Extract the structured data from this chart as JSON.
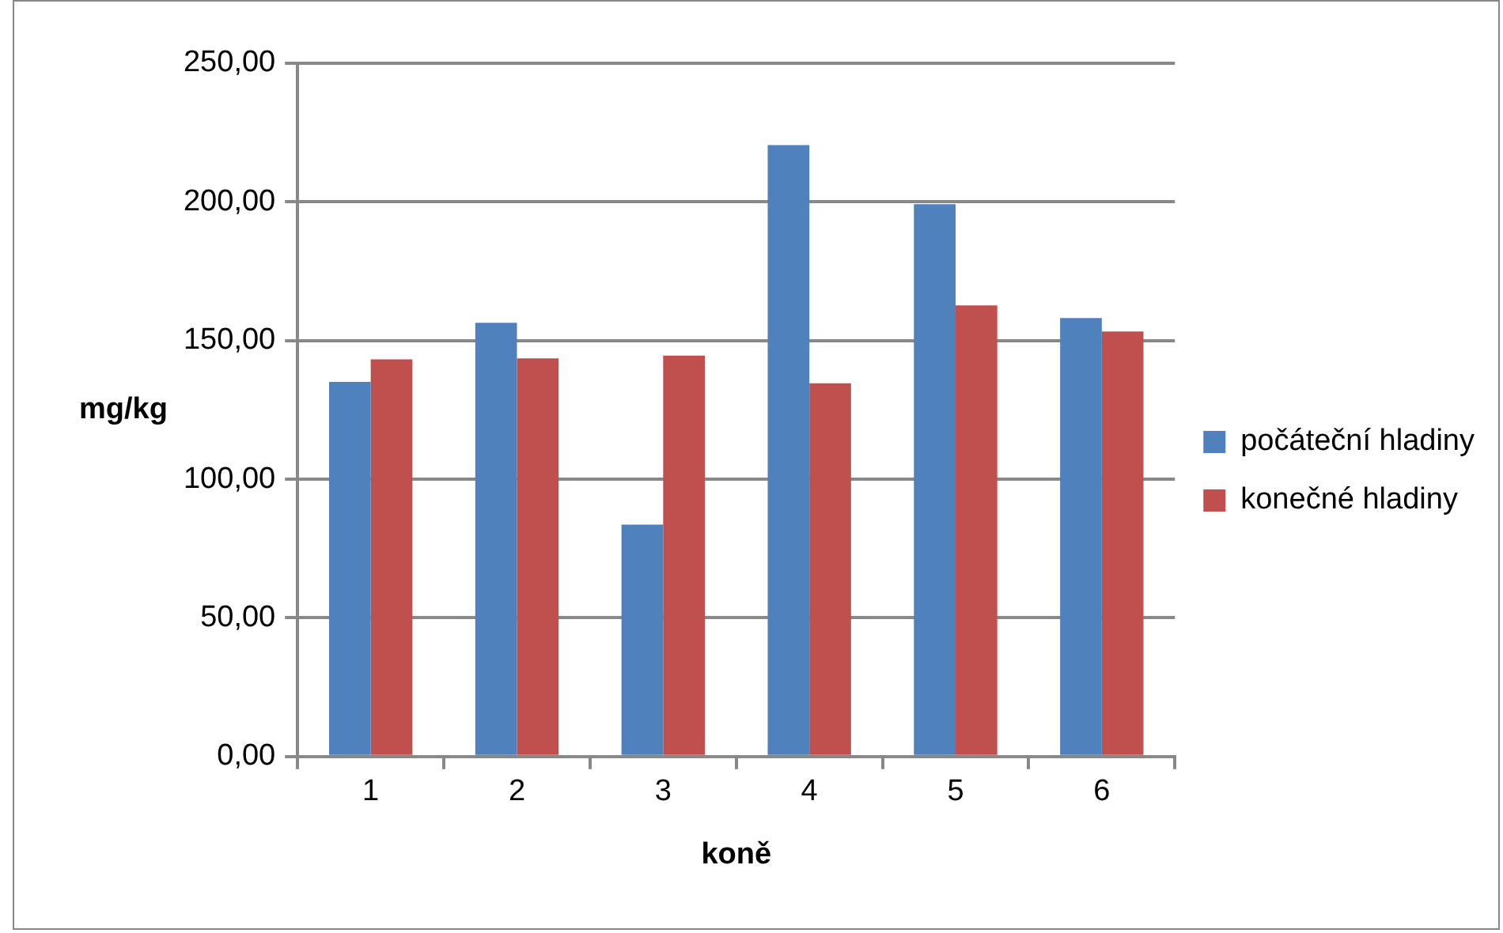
{
  "chart_data": {
    "type": "bar",
    "xlabel": "koně",
    "ylabel": "mg/kg",
    "categories": [
      "1",
      "2",
      "3",
      "4",
      "5",
      "6"
    ],
    "series": [
      {
        "name": "počáteční hladiny",
        "color": "#4f81bd",
        "values": [
          135.1,
          156.4,
          83.6,
          220.5,
          199.2,
          158.1
        ]
      },
      {
        "name": "konečné hladiny",
        "color": "#c0504d",
        "values": [
          143.2,
          143.6,
          144.6,
          134.6,
          162.7,
          153.3
        ]
      }
    ],
    "ylim": [
      0,
      250
    ],
    "yticks": [
      {
        "value": 0,
        "label": "0,00"
      },
      {
        "value": 50,
        "label": "50,00"
      },
      {
        "value": 100,
        "label": "100,00"
      },
      {
        "value": 150,
        "label": "150,00"
      },
      {
        "value": 200,
        "label": "200,00"
      },
      {
        "value": 250,
        "label": "250,00"
      }
    ],
    "grid": "y",
    "legend": "right"
  }
}
